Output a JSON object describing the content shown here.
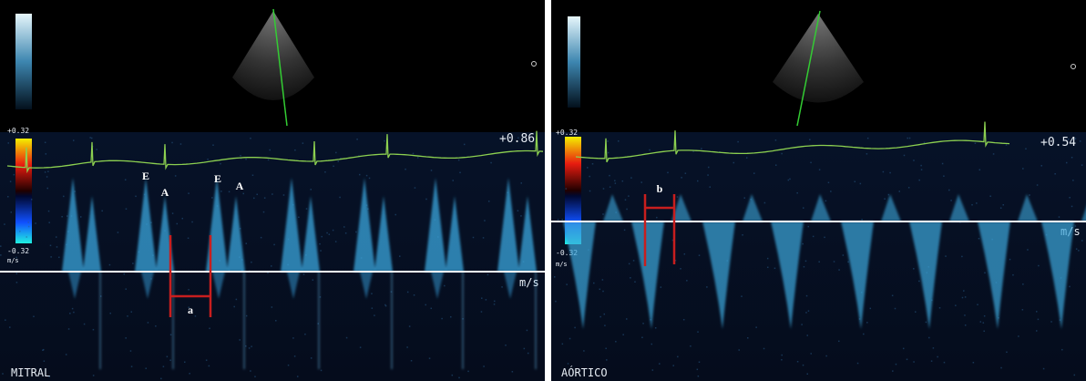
{
  "panels": [
    {
      "label": "MITRAL",
      "scale_top": "+0.32",
      "scale_bottom": "-0.32",
      "scale_unit": "m/s",
      "velocity": "+0.86",
      "unit": "m/s",
      "annotations": [
        "E",
        "A",
        "E",
        "A",
        "a"
      ]
    },
    {
      "label": "AÓRTICO",
      "scale_top": "+0.32",
      "scale_bottom": "-0.32",
      "scale_unit": "m/s",
      "velocity": "+0.54",
      "unit": "m/s",
      "annotations": [
        "b"
      ]
    }
  ]
}
